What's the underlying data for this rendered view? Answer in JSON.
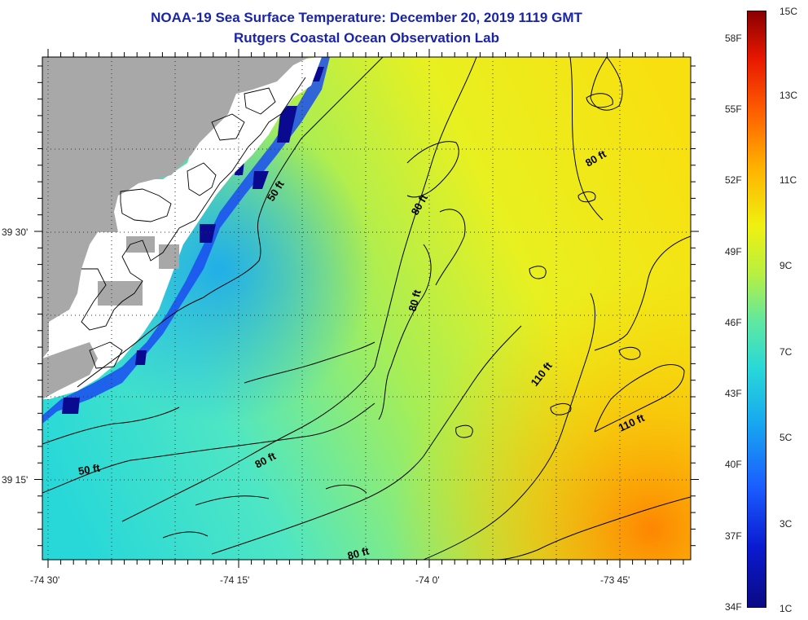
{
  "title": "NOAA-19 Sea Surface Temperature:  December 20, 2019 1119 GMT",
  "subtitle": "Rutgers Coastal Ocean Observation Lab",
  "lat_labels": [
    "39 30'",
    "39 15'"
  ],
  "lon_labels": [
    "-74 30'",
    "-74 15'",
    "-74 0'",
    "-73 45'"
  ],
  "contour_labels": [
    "50 ft",
    "80 ft",
    "80 ft",
    "80 ft",
    "110 ft",
    "110 ft",
    "50 ft",
    "80 ft",
    "80 ft"
  ],
  "colorbar": {
    "f_labels": [
      "58F",
      "55F",
      "52F",
      "49F",
      "46F",
      "43F",
      "40F",
      "37F",
      "34F"
    ],
    "c_labels": [
      "15C",
      "13C",
      "11C",
      "9C",
      "7C",
      "5C",
      "3C",
      "1C"
    ],
    "colors": [
      "#0a0a84",
      "#0a1ad0",
      "#1a5cff",
      "#18a8f0",
      "#28d8d8",
      "#60e8a0",
      "#b8f040",
      "#f0f010",
      "#ffb000",
      "#ff6000",
      "#e81800",
      "#8a0000"
    ]
  },
  "colors": {
    "land": "#a8a8a8",
    "title": "#1a24a8"
  }
}
